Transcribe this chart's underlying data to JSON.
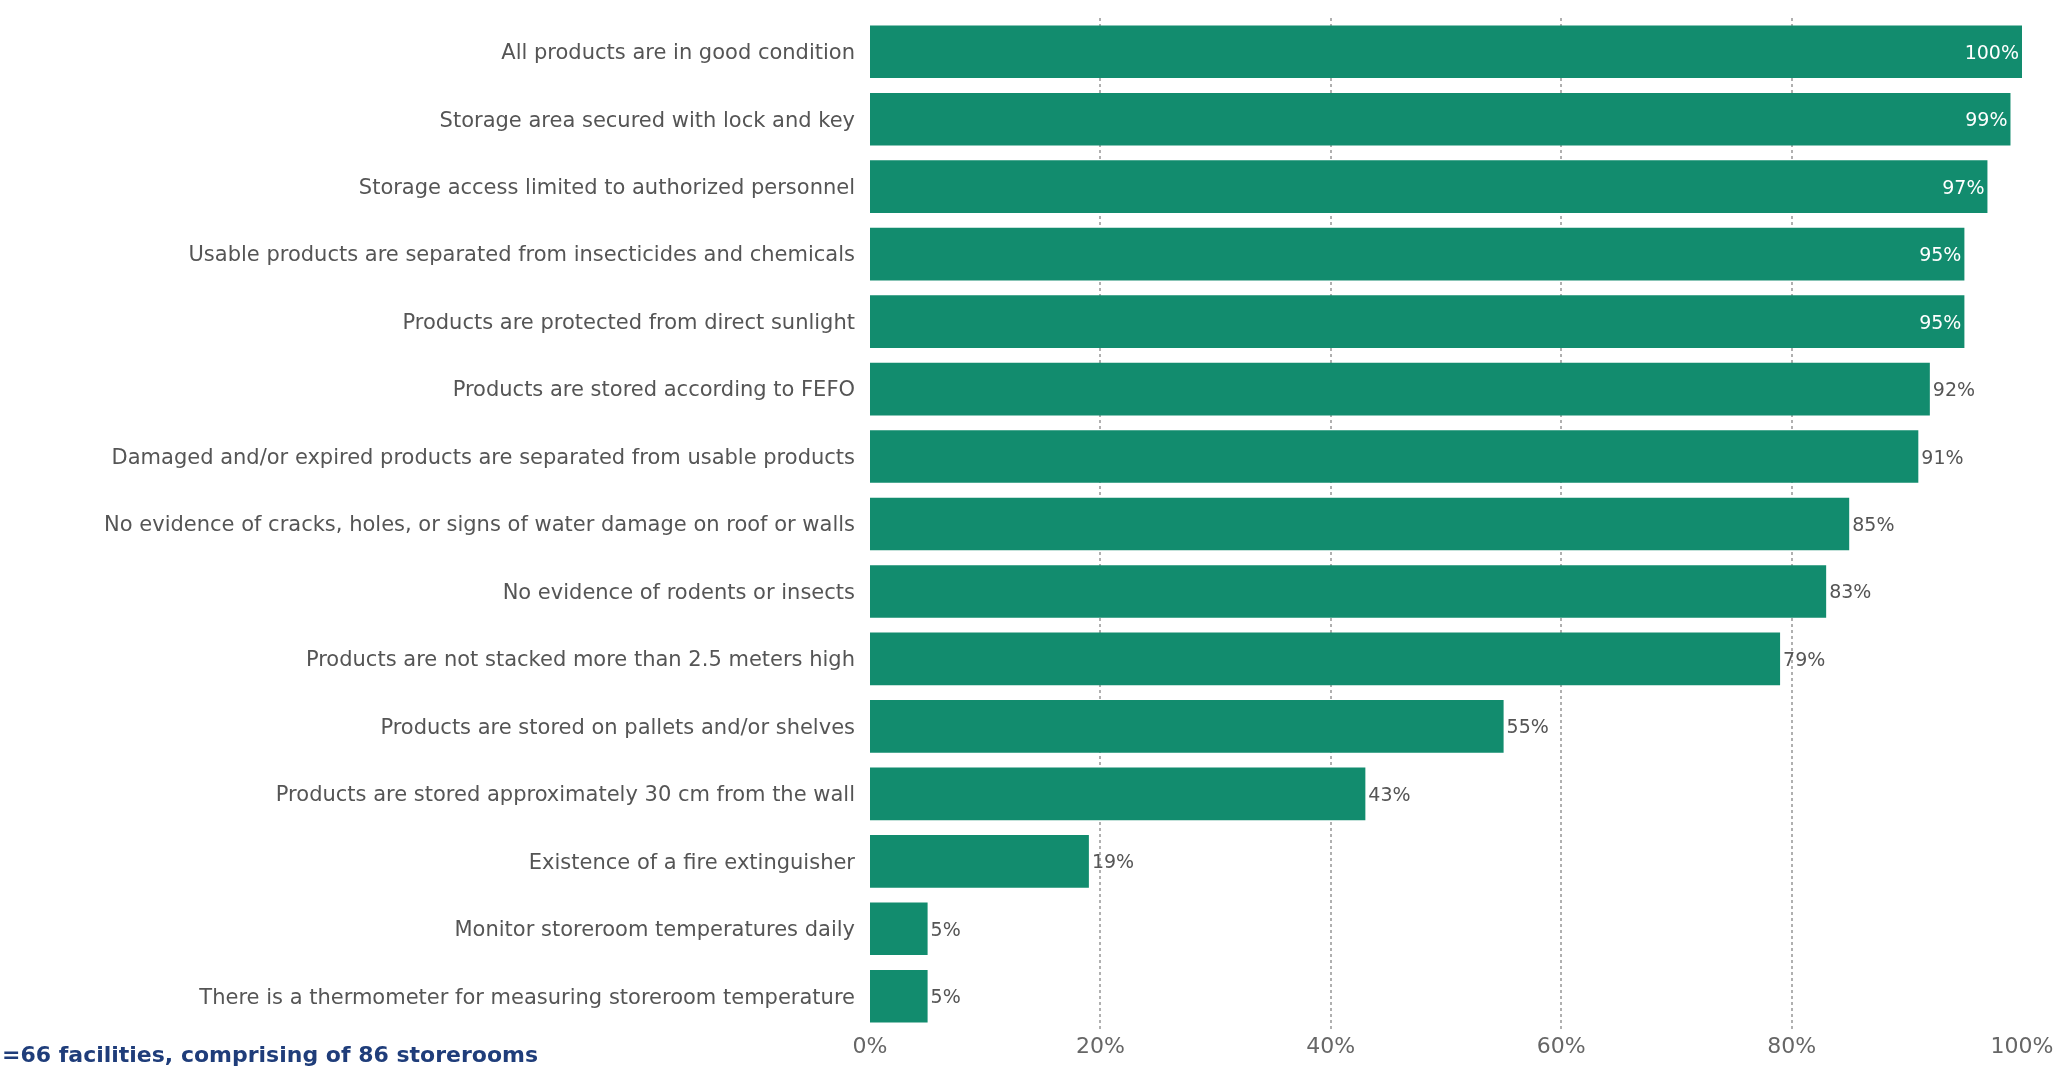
{
  "chart_data": {
    "type": "bar",
    "orientation": "horizontal",
    "categories": [
      "All products are in good condition",
      "Storage area secured with lock and key",
      "Storage access limited to authorized personnel",
      "Usable products are separated from insecticides and chemicals",
      "Products are protected from direct sunlight",
      "Products are stored according to FEFO",
      "Damaged and/or expired products are separated from usable products",
      "No evidence of cracks, holes, or signs of water damage on roof or walls",
      "No evidence of rodents or insects",
      "Products are not stacked more than 2.5 meters high",
      "Products are stored on pallets and/or shelves",
      "Products are stored approximately 30 cm from the wall",
      "Existence of a fire extinguisher",
      "Monitor storeroom temperatures daily",
      "There is a thermometer for measuring storeroom temperature"
    ],
    "values": [
      100,
      99,
      97,
      95,
      95,
      92,
      91,
      85,
      83,
      79,
      55,
      43,
      19,
      5,
      5
    ],
    "value_labels": [
      "100%",
      "99%",
      "97%",
      "95%",
      "95%",
      "92%",
      "91%",
      "85%",
      "83%",
      "79%",
      "55%",
      "43%",
      "19%",
      "5%",
      "5%"
    ],
    "color": "#128c6e",
    "xlim": [
      0,
      100
    ],
    "xticks": [
      {
        "value": 0,
        "label": "0%"
      },
      {
        "value": 20,
        "label": "20%"
      },
      {
        "value": 40,
        "label": "40%"
      },
      {
        "value": 60,
        "label": "60%"
      },
      {
        "value": 80,
        "label": "80%"
      },
      {
        "value": 100,
        "label": "100%"
      }
    ],
    "grid": "x",
    "annotations": [
      "=66 facilities, comprising of 86 storerooms"
    ]
  }
}
